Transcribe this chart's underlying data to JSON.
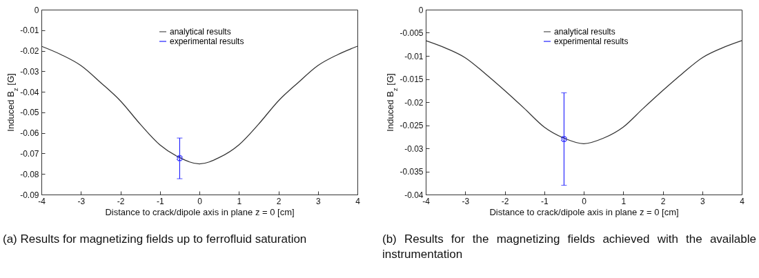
{
  "chart_data": [
    {
      "type": "line",
      "xlabel": "Distance to crack/dipole axis in plane z = 0  [cm]",
      "ylabel": "Induced B$_{z}$ [G]",
      "xlim": [
        -4,
        4
      ],
      "xticks": [
        -4,
        -3,
        -2,
        -1,
        0,
        1,
        2,
        3,
        4
      ],
      "ylim": [
        -0.09,
        0
      ],
      "yticks": [
        -0.09,
        -0.08,
        -0.07,
        -0.06,
        -0.05,
        -0.04,
        -0.03,
        -0.02,
        -0.01,
        0
      ],
      "grid": false,
      "legend": "top",
      "annotations": [
        "(a) Results for magnetizing fields up to ferrofluid saturation"
      ],
      "series": [
        {
          "name": "analytical results",
          "color": "#333333",
          "x": [
            -4,
            -3.5,
            -3,
            -2.5,
            -2,
            -1.5,
            -1,
            -0.5,
            0,
            0.5,
            1,
            1.5,
            2,
            2.5,
            3,
            3.5,
            4
          ],
          "values": [
            -0.0178,
            -0.0219,
            -0.0272,
            -0.0355,
            -0.0444,
            -0.0557,
            -0.0658,
            -0.072,
            -0.0751,
            -0.072,
            -0.0658,
            -0.0557,
            -0.0444,
            -0.0355,
            -0.0272,
            -0.0219,
            -0.0178
          ]
        },
        {
          "name": "experimental results",
          "type": "scatter",
          "marker": "cross",
          "color": "#0000ff",
          "x": [
            -0.5
          ],
          "values": [
            -0.0723
          ],
          "errors": [
            [
              -0.0823,
              -0.0625
            ]
          ]
        }
      ]
    },
    {
      "type": "line",
      "xlabel": "Distance to crack/dipole axis in plane z = 0  [cm]",
      "ylabel": "Induced B$_{z}$ [G]",
      "xlim": [
        -4,
        4
      ],
      "xticks": [
        -4,
        -3,
        -2,
        -1,
        0,
        1,
        2,
        3,
        4
      ],
      "ylim": [
        -0.04,
        0
      ],
      "yticks": [
        -0.04,
        -0.035,
        -0.03,
        -0.025,
        -0.02,
        -0.015,
        -0.01,
        -0.005,
        0
      ],
      "grid": false,
      "legend": "top",
      "annotations": [
        "(b) Results for the magnetizing fields achieved with the available instrumentation"
      ],
      "series": [
        {
          "name": "analytical results",
          "color": "#333333",
          "x": [
            -4,
            -3.5,
            -3,
            -2.5,
            -2,
            -1.5,
            -1,
            -0.5,
            0,
            0.5,
            1,
            1.5,
            2,
            2.5,
            3,
            3.5,
            4
          ],
          "values": [
            -0.0067,
            -0.0083,
            -0.0104,
            -0.0138,
            -0.0175,
            -0.0214,
            -0.0254,
            -0.0278,
            -0.029,
            -0.0278,
            -0.0254,
            -0.0214,
            -0.0175,
            -0.0138,
            -0.0104,
            -0.0083,
            -0.0067
          ]
        },
        {
          "name": "experimental results",
          "type": "scatter",
          "marker": "cross",
          "color": "#0000ff",
          "x": [
            -0.5
          ],
          "values": [
            -0.028
          ],
          "errors": [
            [
              -0.038,
              -0.018
            ]
          ]
        }
      ]
    }
  ]
}
